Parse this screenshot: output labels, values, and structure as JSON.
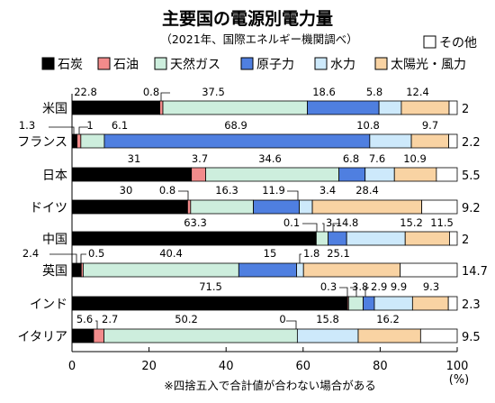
{
  "chart_data": {
    "type": "bar",
    "orientation": "horizontal",
    "stacked": true,
    "title": "主要国の電源別電力量",
    "subtitle": "（2021年、国際エネルギー機関調べ）",
    "note": "※四捨五入で合計値が合わない場合がある",
    "x_unit": "(%)",
    "xlim": [
      0,
      100
    ],
    "x_ticks": [
      "0",
      "20",
      "40",
      "60",
      "80",
      "100"
    ],
    "legend_position": "top",
    "categories": [
      "米国",
      "フランス",
      "日本",
      "ドイツ",
      "中国",
      "英国",
      "インド",
      "イタリア"
    ],
    "series": [
      {
        "name": "石炭",
        "color": "#000000",
        "values": [
          22.8,
          1.3,
          31,
          30,
          63.3,
          2.4,
          71.5,
          5.6
        ]
      },
      {
        "name": "石油",
        "color": "#f28b8b",
        "values": [
          0.8,
          1,
          3.7,
          0.8,
          0.1,
          0.5,
          0.3,
          2.7
        ]
      },
      {
        "name": "天然ガス",
        "color": "#cdeedd",
        "values": [
          37.5,
          6.1,
          34.6,
          16.3,
          3.1,
          40.4,
          3.8,
          50.2
        ]
      },
      {
        "name": "原子力",
        "color": "#4f7fe0",
        "values": [
          18.6,
          68.9,
          6.8,
          11.9,
          4.8,
          15,
          2.9,
          0
        ]
      },
      {
        "name": "水力",
        "color": "#cde9fb",
        "values": [
          5.8,
          10.8,
          7.6,
          3.4,
          15.2,
          1.8,
          9.9,
          15.8
        ]
      },
      {
        "name": "太陽光・風力",
        "color": "#f9d3a3",
        "values": [
          12.4,
          9.7,
          10.9,
          28.4,
          11.5,
          25.1,
          9.3,
          16.2
        ]
      }
    ],
    "other": {
      "name": "その他",
      "color": "#ffffff",
      "values": [
        "2",
        "2.2",
        "5.5",
        "9.2",
        "2",
        "14.7",
        "2.3",
        "9.5"
      ]
    }
  }
}
